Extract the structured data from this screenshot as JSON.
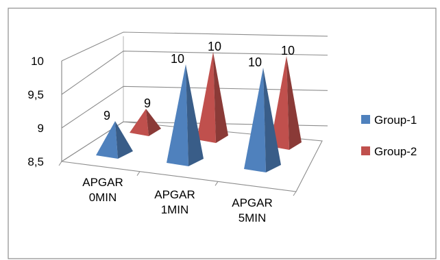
{
  "chart_data": {
    "type": "bar",
    "style": "3d-pyramid",
    "categories": [
      [
        "APGAR",
        "0MIN"
      ],
      [
        "APGAR",
        "1MIN"
      ],
      [
        "APGAR",
        "5MIN"
      ]
    ],
    "series": [
      {
        "name": "Group-1",
        "color": "#4F81BD",
        "values": [
          9,
          10,
          10
        ],
        "labels": [
          "9",
          "10",
          "10"
        ]
      },
      {
        "name": "Group-2",
        "color": "#C0504D",
        "values": [
          9,
          10,
          10
        ],
        "labels": [
          "9",
          "10",
          "10"
        ]
      }
    ],
    "ylim": [
      8.5,
      10
    ],
    "yticks": [
      "8,5",
      "9",
      "9,5",
      "10"
    ],
    "ytick_values": [
      8.5,
      9,
      9.5,
      10
    ],
    "grid": true,
    "legend": "right"
  }
}
